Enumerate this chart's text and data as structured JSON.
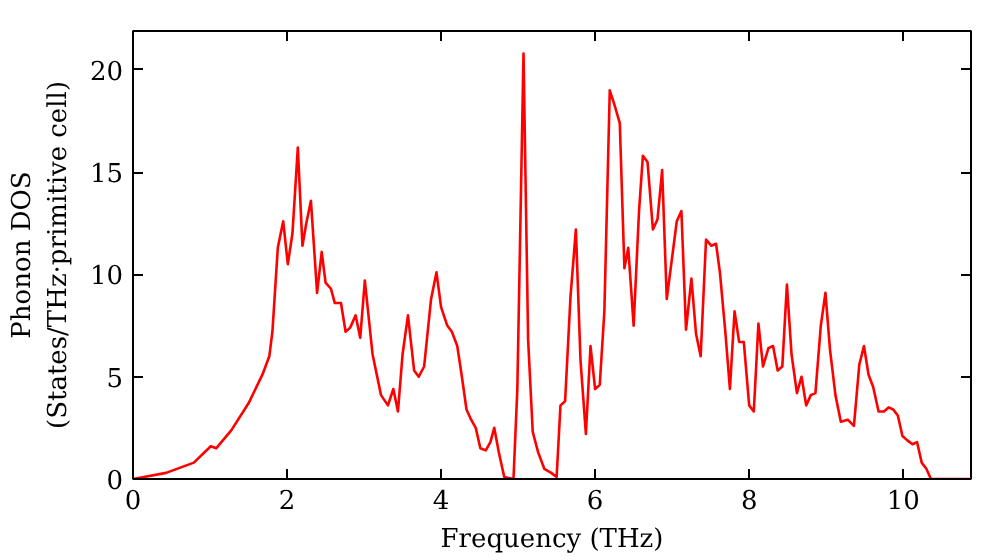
{
  "chart_data": {
    "type": "line",
    "xlabel": "Frequency (THz)",
    "ylabel": "Phonon DOS\n(States/THz·primitive cell)",
    "xlim": [
      0,
      10.88
    ],
    "ylim": [
      0,
      21.9
    ],
    "xticks": [
      0,
      2,
      4,
      6,
      8,
      10
    ],
    "yticks": [
      0,
      5,
      10,
      15,
      20
    ],
    "grid": false,
    "marker": "none",
    "line_style": "solid",
    "series": [
      {
        "color": "#ff0000",
        "x": [
          0,
          0.43,
          0.79,
          1.01,
          1.08,
          1.28,
          1.5,
          1.68,
          1.77,
          1.81,
          1.88,
          1.95,
          2.01,
          2.07,
          2.14,
          2.2,
          2.25,
          2.31,
          2.39,
          2.45,
          2.5,
          2.57,
          2.62,
          2.7,
          2.76,
          2.82,
          2.89,
          2.95,
          3.01,
          3.11,
          3.22,
          3.31,
          3.38,
          3.44,
          3.5,
          3.57,
          3.65,
          3.71,
          3.78,
          3.87,
          3.94,
          4.0,
          4.08,
          4.14,
          4.21,
          4.27,
          4.33,
          4.39,
          4.45,
          4.51,
          4.58,
          4.64,
          4.69,
          4.75,
          4.82,
          4.94,
          4.99,
          5.07,
          5.13,
          5.19,
          5.26,
          5.34,
          5.43,
          5.5,
          5.55,
          5.61,
          5.68,
          5.75,
          5.81,
          5.88,
          5.94,
          6.0,
          6.06,
          6.12,
          6.19,
          6.25,
          6.32,
          6.38,
          6.43,
          6.5,
          6.57,
          6.62,
          6.68,
          6.75,
          6.81,
          6.87,
          6.93,
          7.06,
          7.12,
          7.18,
          7.25,
          7.31,
          7.37,
          7.44,
          7.51,
          7.57,
          7.62,
          7.69,
          7.75,
          7.81,
          7.87,
          7.93,
          8.0,
          8.06,
          8.12,
          8.18,
          8.25,
          8.31,
          8.37,
          8.43,
          8.49,
          8.55,
          8.62,
          8.68,
          8.74,
          8.8,
          8.86,
          8.93,
          8.99,
          9.05,
          9.12,
          9.19,
          9.28,
          9.36,
          9.43,
          9.49,
          9.55,
          9.61,
          9.68,
          9.75,
          9.81,
          9.87,
          9.93,
          9.99,
          10.05,
          10.12,
          10.18,
          10.24,
          10.3,
          10.36,
          10.88
        ],
        "values": [
          0,
          0.3,
          0.8,
          1.6,
          1.5,
          2.4,
          3.7,
          5.1,
          6.0,
          7.2,
          11.3,
          12.6,
          10.5,
          12.0,
          16.2,
          11.4,
          12.5,
          13.6,
          9.1,
          11.1,
          9.6,
          9.3,
          8.6,
          8.6,
          7.2,
          7.4,
          8.0,
          6.9,
          9.7,
          6.1,
          4.1,
          3.6,
          4.4,
          3.3,
          6.1,
          8.0,
          5.3,
          5.0,
          5.5,
          8.8,
          10.1,
          8.4,
          7.5,
          7.2,
          6.5,
          5.0,
          3.4,
          2.9,
          2.5,
          1.5,
          1.4,
          1.8,
          2.5,
          1.3,
          0.1,
          0,
          4.4,
          20.8,
          6.8,
          2.3,
          1.3,
          0.5,
          0.3,
          0.1,
          3.6,
          3.8,
          8.9,
          12.2,
          5.8,
          2.2,
          6.5,
          4.4,
          4.6,
          8.2,
          19.0,
          18.3,
          17.4,
          10.3,
          11.3,
          7.5,
          13.1,
          15.8,
          15.5,
          12.2,
          12.7,
          15.1,
          8.8,
          12.6,
          13.1,
          7.3,
          9.8,
          7.1,
          6.0,
          11.7,
          11.4,
          11.5,
          10.1,
          7.2,
          4.4,
          8.2,
          6.7,
          6.7,
          3.6,
          3.3,
          7.6,
          5.5,
          6.4,
          6.5,
          5.3,
          5.5,
          9.5,
          6.1,
          4.2,
          5.0,
          3.6,
          4.1,
          4.2,
          7.5,
          9.1,
          6.3,
          4.1,
          2.8,
          2.9,
          2.6,
          5.6,
          6.5,
          5.1,
          4.5,
          3.3,
          3.3,
          3.5,
          3.4,
          3.1,
          2.1,
          1.9,
          1.7,
          1.8,
          0.8,
          0.5,
          0,
          0
        ]
      }
    ]
  }
}
